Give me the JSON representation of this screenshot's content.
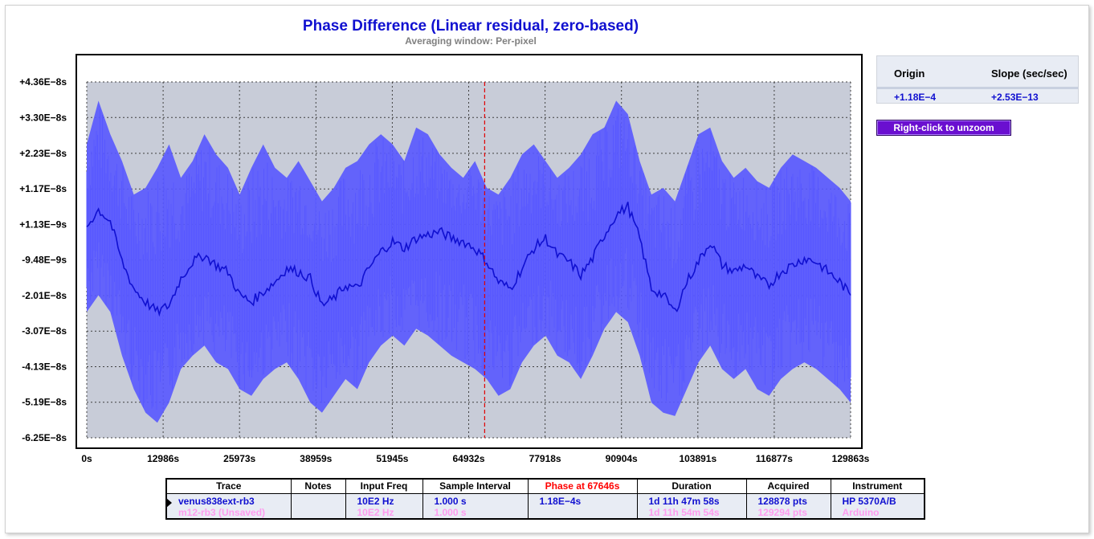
{
  "chart_data": {
    "type": "line",
    "title": "Phase Difference (Linear residual, zero-based)",
    "subtitle": "Averaging window: Per-pixel",
    "xlim": [
      0,
      129863
    ],
    "ylim": [
      -6.25e-08,
      4.36e-08
    ],
    "x_unit": "s",
    "y_unit": "s",
    "xticks": [
      "0s",
      "12986s",
      "25973s",
      "38959s",
      "51945s",
      "64932s",
      "77918s",
      "90904s",
      "103891s",
      "116877s",
      "129863s"
    ],
    "xtick_values": [
      0,
      12986,
      25973,
      38959,
      51945,
      64932,
      77918,
      90904,
      103891,
      116877,
      129863
    ],
    "yticks": [
      "+4.36E−8s",
      "+3.30E−8s",
      "+2.23E−8s",
      "+1.17E−8s",
      "+1.13E−9s",
      "-9.48E−9s",
      "-2.01E−8s",
      "-3.07E−8s",
      "-4.13E−8s",
      "-5.19E−8s",
      "-6.25E−8s"
    ],
    "ytick_values": [
      4.36e-08,
      3.3e-08,
      2.23e-08,
      1.17e-08,
      1.13e-09,
      -9.48e-09,
      -2.01e-08,
      -3.07e-08,
      -4.13e-08,
      -5.19e-08,
      -6.25e-08
    ],
    "grid": true,
    "cursor_x": 67646,
    "series": [
      {
        "name": "venus838ext-rb3",
        "color": "#1010d0",
        "x": [
          0,
          2000,
          4000,
          6000,
          8000,
          10000,
          12000,
          14000,
          16000,
          18000,
          20000,
          22000,
          24000,
          26000,
          28000,
          30000,
          32000,
          34000,
          36000,
          38000,
          40000,
          42000,
          44000,
          46000,
          48000,
          50000,
          52000,
          54000,
          56000,
          58000,
          60000,
          62000,
          64000,
          66000,
          68000,
          70000,
          72000,
          74000,
          76000,
          78000,
          80000,
          82000,
          84000,
          86000,
          88000,
          90000,
          92000,
          94000,
          96000,
          98000,
          100000,
          102000,
          104000,
          106000,
          108000,
          110000,
          112000,
          114000,
          116000,
          118000,
          120000,
          122000,
          124000,
          126000,
          128000,
          129863
        ],
        "avg": [
          5e-10,
          5.5e-09,
          2e-09,
          -1e-08,
          -1.8e-08,
          -2.2e-08,
          -2.5e-08,
          -2.3e-08,
          -1.5e-08,
          -1e-08,
          -8e-09,
          -1.1e-08,
          -1.3e-08,
          -2e-08,
          -2.2e-08,
          -1.9e-08,
          -1.6e-08,
          -1.2e-08,
          -1.3e-08,
          -1.5e-08,
          -2.3e-08,
          -2.1e-08,
          -1.7e-08,
          -1.8e-08,
          -1.2e-08,
          -7e-09,
          -4e-09,
          -6e-09,
          -3e-09,
          -2e-09,
          -1e-09,
          -3e-09,
          -4e-09,
          -6e-09,
          -1e-08,
          -1.6e-08,
          -1.8e-08,
          -1.2e-08,
          -6e-09,
          -3e-09,
          -8e-09,
          -1e-08,
          -1.4e-08,
          -9e-09,
          -2e-09,
          4e-09,
          6.5e-09,
          -3e-09,
          -1.8e-08,
          -2e-08,
          -2.5e-08,
          -1.6e-08,
          -1e-08,
          -4e-09,
          -1.1e-08,
          -1.3e-08,
          -1.1e-08,
          -1.5e-08,
          -1.7e-08,
          -1.3e-08,
          -1.1e-08,
          -9e-09,
          -1e-08,
          -1.3e-08,
          -1.6e-08,
          -2e-08
        ],
        "upper": [
          2.5e-08,
          3.8e-08,
          2.8e-08,
          2e-08,
          1e-08,
          1.2e-08,
          1.8e-08,
          2.5e-08,
          1.5e-08,
          2e-08,
          2.8e-08,
          2.2e-08,
          1.8e-08,
          1e-08,
          1.8e-08,
          2.5e-08,
          1.8e-08,
          1.5e-08,
          2e-08,
          1.4e-08,
          8e-09,
          1.2e-08,
          1.8e-08,
          2e-08,
          2.5e-08,
          2.8e-08,
          2.5e-08,
          2e-08,
          3e-08,
          2.8e-08,
          2.2e-08,
          1.8e-08,
          1.5e-08,
          2e-08,
          1.2e-08,
          1e-08,
          1.5e-08,
          2.2e-08,
          2.5e-08,
          2e-08,
          1.5e-08,
          1.8e-08,
          2.2e-08,
          2.8e-08,
          3e-08,
          3.8e-08,
          3.4e-08,
          2e-08,
          1e-08,
          1.2e-08,
          8e-09,
          1.8e-08,
          2.8e-08,
          3e-08,
          2e-08,
          1.5e-08,
          1.8e-08,
          1.4e-08,
          1.2e-08,
          1.8e-08,
          2.2e-08,
          2e-08,
          1.8e-08,
          1.5e-08,
          1.2e-08,
          8e-09
        ],
        "lower": [
          -2.5e-08,
          -2e-08,
          -2.5e-08,
          -3.8e-08,
          -4.8e-08,
          -5.5e-08,
          -5.8e-08,
          -5.2e-08,
          -4.2e-08,
          -3.8e-08,
          -3.5e-08,
          -4e-08,
          -4.2e-08,
          -4.8e-08,
          -5e-08,
          -4.5e-08,
          -4.2e-08,
          -4e-08,
          -4.5e-08,
          -5.2e-08,
          -5.5e-08,
          -5e-08,
          -4.5e-08,
          -4.8e-08,
          -4e-08,
          -3.5e-08,
          -3.2e-08,
          -3.5e-08,
          -3e-08,
          -3.2e-08,
          -3.5e-08,
          -3.8e-08,
          -4e-08,
          -4.2e-08,
          -4.5e-08,
          -5e-08,
          -4.8e-08,
          -4e-08,
          -3.5e-08,
          -3.2e-08,
          -3.8e-08,
          -4e-08,
          -4.5e-08,
          -3.8e-08,
          -3e-08,
          -2.5e-08,
          -2.8e-08,
          -3.8e-08,
          -5.2e-08,
          -5.5e-08,
          -5.6e-08,
          -4.8e-08,
          -4e-08,
          -3.5e-08,
          -4.2e-08,
          -4.5e-08,
          -4.2e-08,
          -4.8e-08,
          -5e-08,
          -4.5e-08,
          -4.2e-08,
          -4e-08,
          -4.2e-08,
          -4.5e-08,
          -4.8e-08,
          -5.2e-08
        ]
      }
    ]
  },
  "fit": {
    "origin_label": "Origin",
    "slope_label": "Slope (sec/sec)",
    "origin_value": "+1.18E−4",
    "slope_value": "+2.53E−13"
  },
  "unzoom_label": "Right-click to unzoom",
  "table": {
    "headers": {
      "trace": "Trace",
      "notes": "Notes",
      "input_freq": "Input Freq",
      "sample_interval": "Sample Interval",
      "phase_at": "Phase at 67646s",
      "duration": "Duration",
      "acquired": "Acquired",
      "instrument": "Instrument"
    },
    "rows": [
      {
        "trace": "venus838ext-rb3",
        "notes": "",
        "input_freq": "10E2 Hz",
        "sample_interval": "1.000 s",
        "phase_at": "1.18E−4s",
        "duration": "1d 11h 47m 58s",
        "acquired": "128878 pts",
        "instrument": "HP 5370A/B"
      },
      {
        "trace": "m12-rb3 (Unsaved)",
        "notes": "",
        "input_freq": "10E2 Hz",
        "sample_interval": "1.000 s",
        "phase_at": "",
        "duration": "1d 11h 54m 54s",
        "acquired": "129294 pts",
        "instrument": "Arduino"
      }
    ]
  },
  "colors": {
    "trace_primary": "#1010d0",
    "trace_envelope": "#5858ff",
    "trace_secondary": "#ff9cf0",
    "cursor": "#e00000",
    "plot_bg": "#c8ccd8",
    "unzoom_bg": "#6a0fd0"
  }
}
